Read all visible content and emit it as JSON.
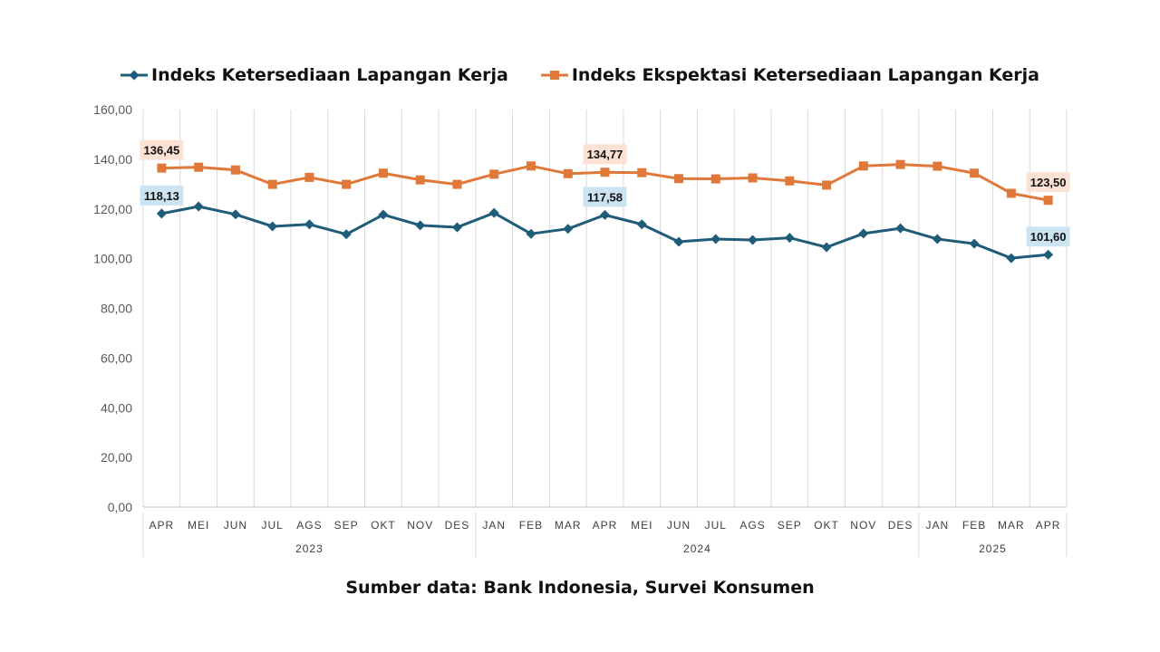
{
  "chart_data": {
    "type": "line",
    "categories": [
      "APR",
      "MEI",
      "JUN",
      "JUL",
      "AGS",
      "SEP",
      "OKT",
      "NOV",
      "DES",
      "JAN",
      "FEB",
      "MAR",
      "APR",
      "MEI",
      "JUN",
      "JUL",
      "AGS",
      "SEP",
      "OKT",
      "NOV",
      "DES",
      "JAN",
      "FEB",
      "MAR",
      "APR"
    ],
    "year_groups": [
      {
        "label": "2023",
        "start": 0,
        "end": 8
      },
      {
        "label": "2024",
        "start": 9,
        "end": 20
      },
      {
        "label": "2025",
        "start": 21,
        "end": 24
      }
    ],
    "series": [
      {
        "name": "Indeks Ketersediaan Lapangan Kerja",
        "color": "#1f5c7a",
        "marker": "diamond",
        "label_bg": "#cce4f2",
        "values": [
          118.13,
          121.0,
          117.8,
          113.0,
          113.8,
          109.8,
          117.7,
          113.4,
          112.6,
          118.4,
          110.0,
          112.0,
          117.58,
          113.8,
          106.8,
          107.9,
          107.5,
          108.4,
          104.6,
          110.1,
          112.2,
          107.9,
          106.0,
          100.2,
          101.6
        ]
      },
      {
        "name": "Indeks Ekspektasi Ketersediaan Lapangan Kerja",
        "color": "#e07839",
        "marker": "square",
        "label_bg": "#fbe2d4",
        "values": [
          136.45,
          136.8,
          135.7,
          129.9,
          132.7,
          129.9,
          134.4,
          131.7,
          129.9,
          134.0,
          137.3,
          134.2,
          134.77,
          134.6,
          132.2,
          132.1,
          132.5,
          131.3,
          129.6,
          137.3,
          137.9,
          137.2,
          134.4,
          126.3,
          123.5
        ]
      }
    ],
    "data_labels": [
      {
        "series": 0,
        "index": 0,
        "text": "118,13"
      },
      {
        "series": 0,
        "index": 12,
        "text": "117,58"
      },
      {
        "series": 0,
        "index": 24,
        "text": "101,60"
      },
      {
        "series": 1,
        "index": 0,
        "text": "136,45"
      },
      {
        "series": 1,
        "index": 12,
        "text": "134,77"
      },
      {
        "series": 1,
        "index": 24,
        "text": "123,50"
      }
    ],
    "y_ticks": [
      "0,00",
      "20,00",
      "40,00",
      "60,00",
      "80,00",
      "100,00",
      "120,00",
      "140,00",
      "160,00"
    ],
    "ylim": [
      0,
      160
    ],
    "grid": "vertical",
    "legend_position": "top-center",
    "title": "",
    "xlabel": "",
    "ylabel": ""
  },
  "source_note": "Sumber data: Bank Indonesia, Survei Konsumen"
}
